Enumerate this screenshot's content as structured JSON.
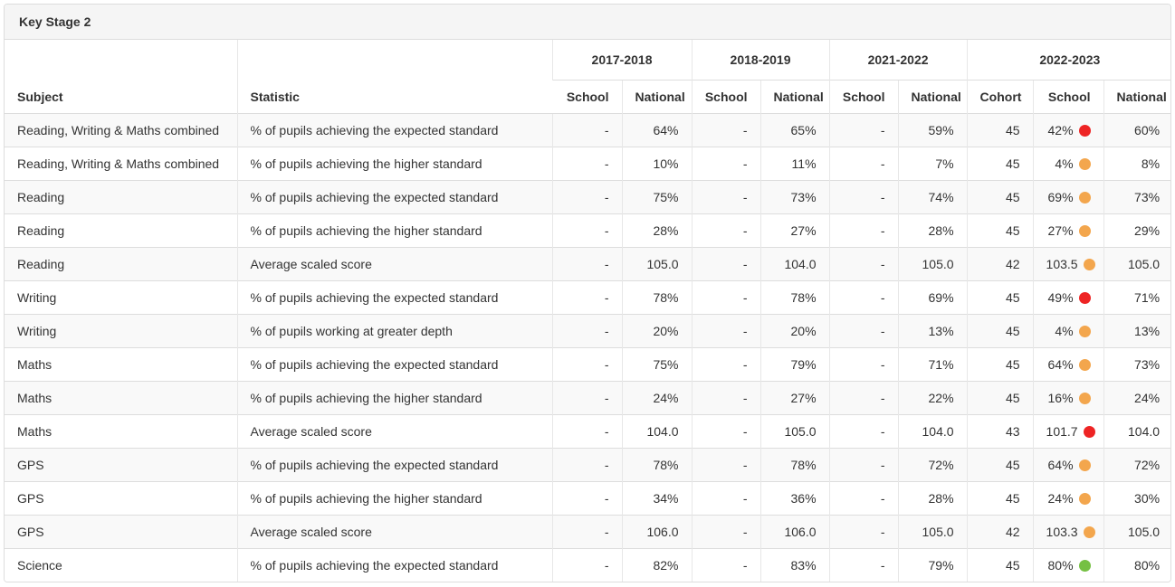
{
  "panel": {
    "title": "Key Stage 2"
  },
  "table": {
    "columns": {
      "subject": "Subject",
      "statistic": "Statistic"
    },
    "year_groups": [
      {
        "label": "2017-2018",
        "sub": [
          "School",
          "National"
        ]
      },
      {
        "label": "2018-2019",
        "sub": [
          "School",
          "National"
        ]
      },
      {
        "label": "2021-2022",
        "sub": [
          "School",
          "National"
        ]
      },
      {
        "label": "2022-2023",
        "sub": [
          "Cohort",
          "School",
          "National"
        ]
      }
    ],
    "status_colors": {
      "red": "#ee2424",
      "amber": "#f3a64d",
      "green": "#75c043"
    },
    "rows": [
      {
        "subject": "Reading, Writing & Maths combined",
        "statistic": "% of pupils achieving the expected standard",
        "values": [
          "-",
          "64%",
          "-",
          "65%",
          "-",
          "59%",
          "45",
          "42%",
          "60%"
        ],
        "rag": "red"
      },
      {
        "subject": "Reading, Writing & Maths combined",
        "statistic": "% of pupils achieving the higher standard",
        "values": [
          "-",
          "10%",
          "-",
          "11%",
          "-",
          "7%",
          "45",
          "4%",
          "8%"
        ],
        "rag": "amber"
      },
      {
        "subject": "Reading",
        "statistic": "% of pupils achieving the expected standard",
        "values": [
          "-",
          "75%",
          "-",
          "73%",
          "-",
          "74%",
          "45",
          "69%",
          "73%"
        ],
        "rag": "amber"
      },
      {
        "subject": "Reading",
        "statistic": "% of pupils achieving the higher standard",
        "values": [
          "-",
          "28%",
          "-",
          "27%",
          "-",
          "28%",
          "45",
          "27%",
          "29%"
        ],
        "rag": "amber"
      },
      {
        "subject": "Reading",
        "statistic": "Average scaled score",
        "values": [
          "-",
          "105.0",
          "-",
          "104.0",
          "-",
          "105.0",
          "42",
          "103.5",
          "105.0"
        ],
        "rag": "amber"
      },
      {
        "subject": "Writing",
        "statistic": "% of pupils achieving the expected standard",
        "values": [
          "-",
          "78%",
          "-",
          "78%",
          "-",
          "69%",
          "45",
          "49%",
          "71%"
        ],
        "rag": "red"
      },
      {
        "subject": "Writing",
        "statistic": "% of pupils working at greater depth",
        "values": [
          "-",
          "20%",
          "-",
          "20%",
          "-",
          "13%",
          "45",
          "4%",
          "13%"
        ],
        "rag": "amber"
      },
      {
        "subject": "Maths",
        "statistic": "% of pupils achieving the expected standard",
        "values": [
          "-",
          "75%",
          "-",
          "79%",
          "-",
          "71%",
          "45",
          "64%",
          "73%"
        ],
        "rag": "amber"
      },
      {
        "subject": "Maths",
        "statistic": "% of pupils achieving the higher standard",
        "values": [
          "-",
          "24%",
          "-",
          "27%",
          "-",
          "22%",
          "45",
          "16%",
          "24%"
        ],
        "rag": "amber"
      },
      {
        "subject": "Maths",
        "statistic": "Average scaled score",
        "values": [
          "-",
          "104.0",
          "-",
          "105.0",
          "-",
          "104.0",
          "43",
          "101.7",
          "104.0"
        ],
        "rag": "red"
      },
      {
        "subject": "GPS",
        "statistic": "% of pupils achieving the expected standard",
        "values": [
          "-",
          "78%",
          "-",
          "78%",
          "-",
          "72%",
          "45",
          "64%",
          "72%"
        ],
        "rag": "amber"
      },
      {
        "subject": "GPS",
        "statistic": "% of pupils achieving the higher standard",
        "values": [
          "-",
          "34%",
          "-",
          "36%",
          "-",
          "28%",
          "45",
          "24%",
          "30%"
        ],
        "rag": "amber"
      },
      {
        "subject": "GPS",
        "statistic": "Average scaled score",
        "values": [
          "-",
          "106.0",
          "-",
          "106.0",
          "-",
          "105.0",
          "42",
          "103.3",
          "105.0"
        ],
        "rag": "amber"
      },
      {
        "subject": "Science",
        "statistic": "% of pupils achieving the expected standard",
        "values": [
          "-",
          "82%",
          "-",
          "83%",
          "-",
          "79%",
          "45",
          "80%",
          "80%"
        ],
        "rag": "green"
      }
    ]
  }
}
